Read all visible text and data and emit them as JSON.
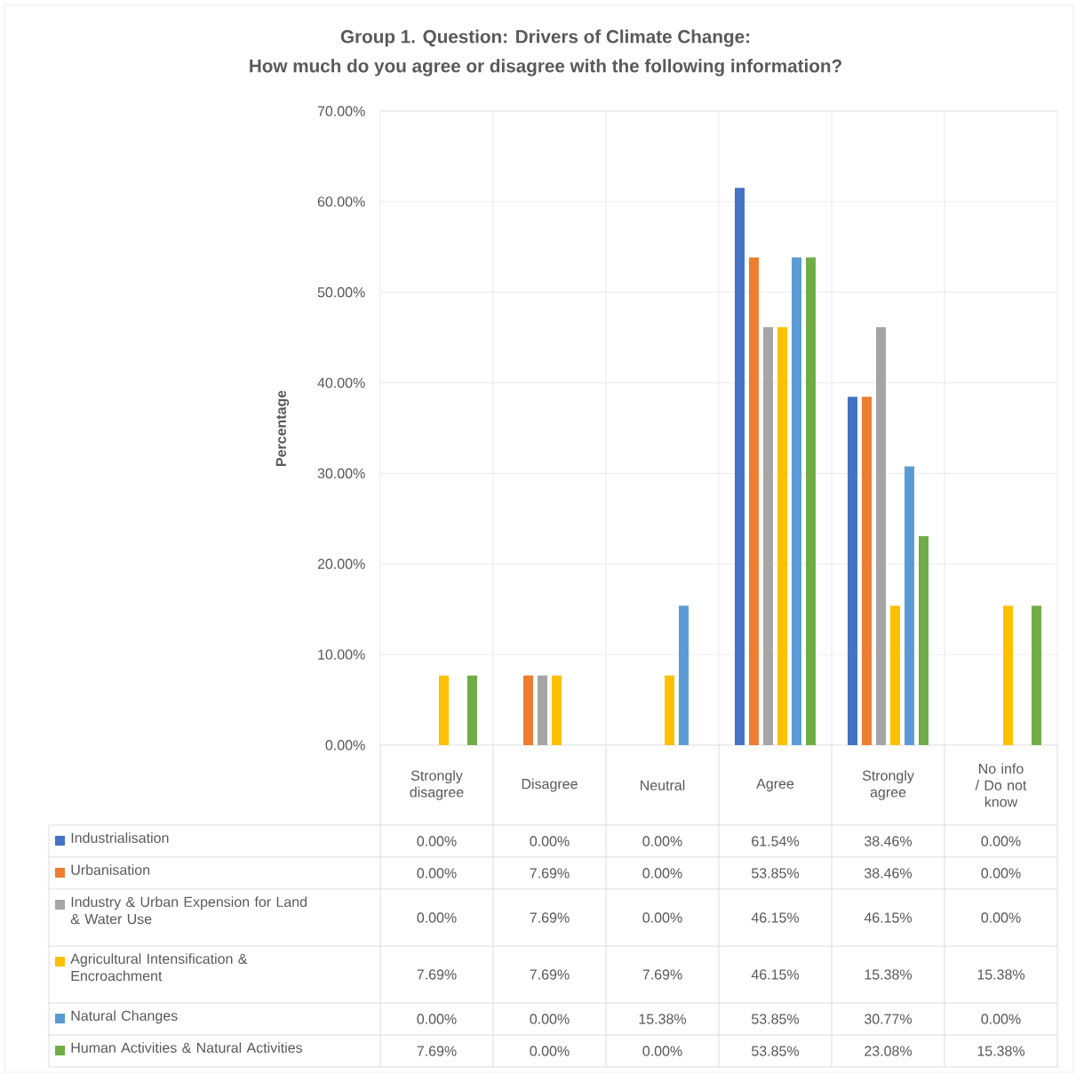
{
  "chart_data": {
    "type": "bar",
    "title": "Group 1. Question: Drivers of Climate Change:",
    "subtitle": "How much do you agree or disagree with the following information?",
    "ylabel": "Percentage",
    "categories": [
      "Strongly disagree",
      "Disagree",
      "Neutral",
      "Agree",
      "Strongly agree",
      "No info / Do not know"
    ],
    "ylim": [
      0,
      70
    ],
    "yticks": [
      {
        "value": 0,
        "label": "0.00%"
      },
      {
        "value": 10,
        "label": "10.00%"
      },
      {
        "value": 20,
        "label": "20.00%"
      },
      {
        "value": 30,
        "label": "30.00%"
      },
      {
        "value": 40,
        "label": "40.00%"
      },
      {
        "value": 50,
        "label": "50.00%"
      },
      {
        "value": 60,
        "label": "60.00%"
      },
      {
        "value": 70,
        "label": "70.00%"
      }
    ],
    "grid": true,
    "legend": "bottom left",
    "series": [
      {
        "name": "Industrialisation",
        "color": "#4472c4",
        "values": [
          0,
          0,
          0,
          61.54,
          38.46,
          0
        ],
        "value_labels": [
          "0.00%",
          "0.00%",
          "0.00%",
          "61.54%",
          "38.46%",
          "0.00%"
        ]
      },
      {
        "name": "Urbanisation",
        "color": "#ed7d31",
        "values": [
          0,
          7.69,
          0,
          53.85,
          38.46,
          0
        ],
        "value_labels": [
          "0.00%",
          "7.69%",
          "0.00%",
          "53.85%",
          "38.46%",
          "0.00%"
        ]
      },
      {
        "name": "Industry & Urban Expension for Land & Water Use",
        "color": "#a5a5a5",
        "values": [
          0,
          7.69,
          0,
          46.15,
          46.15,
          0
        ],
        "value_labels": [
          "0.00%",
          "7.69%",
          "0.00%",
          "46.15%",
          "46.15%",
          "0.00%"
        ]
      },
      {
        "name": "Agricultural Intensification & Encroachment",
        "color": "#ffc000",
        "values": [
          7.69,
          7.69,
          7.69,
          46.15,
          15.38,
          15.38
        ],
        "value_labels": [
          "7.69%",
          "7.69%",
          "7.69%",
          "46.15%",
          "15.38%",
          "15.38%"
        ]
      },
      {
        "name": "Natural Changes",
        "color": "#5b9bd5",
        "values": [
          0,
          0,
          15.38,
          53.85,
          30.77,
          0
        ],
        "value_labels": [
          "0.00%",
          "0.00%",
          "15.38%",
          "53.85%",
          "30.77%",
          "0.00%"
        ]
      },
      {
        "name": "Human Activities & Natural Activities",
        "color": "#70ad47",
        "values": [
          7.69,
          0,
          0,
          53.85,
          23.08,
          15.38
        ],
        "value_labels": [
          "7.69%",
          "0.00%",
          "0.00%",
          "53.85%",
          "23.08%",
          "15.38%"
        ]
      }
    ]
  }
}
